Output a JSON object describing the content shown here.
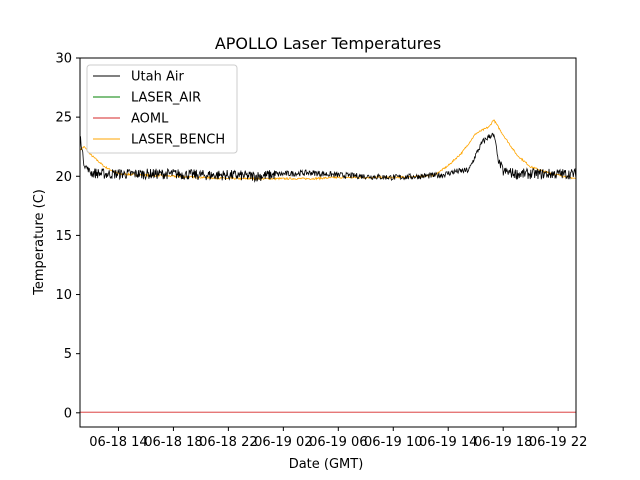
{
  "chart_data": {
    "type": "line",
    "title": "APOLLO Laser Temperatures",
    "xlabel": "Date (GMT)",
    "ylabel": "Temperature (C)",
    "ylim": [
      -1.2,
      30
    ],
    "xlim_hours": [
      11.2,
      47.3
    ],
    "yticks": [
      0,
      5,
      10,
      15,
      20,
      25,
      30
    ],
    "xticks": [
      {
        "hour": 14,
        "label": "06-18 14"
      },
      {
        "hour": 18,
        "label": "06-18 18"
      },
      {
        "hour": 22,
        "label": "06-18 22"
      },
      {
        "hour": 26,
        "label": "06-19 02"
      },
      {
        "hour": 30,
        "label": "06-19 06"
      },
      {
        "hour": 34,
        "label": "06-19 10"
      },
      {
        "hour": 38,
        "label": "06-19 14"
      },
      {
        "hour": 42,
        "label": "06-19 18"
      },
      {
        "hour": 46,
        "label": "06-19 22"
      }
    ],
    "legend_position": "top-left",
    "series": [
      {
        "name": "Utah Air",
        "color": "#000000",
        "noise": 0.25,
        "points": [
          [
            11.2,
            23.5
          ],
          [
            11.5,
            21.0
          ],
          [
            12.0,
            20.3
          ],
          [
            13.0,
            20.2
          ],
          [
            14.0,
            20.2
          ],
          [
            16.0,
            20.2
          ],
          [
            18.0,
            20.2
          ],
          [
            20.0,
            20.1
          ],
          [
            22.0,
            20.1
          ],
          [
            24.0,
            20.0
          ],
          [
            26.0,
            20.2
          ],
          [
            28.0,
            20.3
          ],
          [
            30.0,
            20.1
          ],
          [
            32.0,
            20.0
          ],
          [
            34.0,
            19.9
          ],
          [
            36.0,
            20.0
          ],
          [
            37.5,
            20.1
          ],
          [
            38.5,
            20.4
          ],
          [
            39.5,
            20.5
          ],
          [
            40.0,
            21.8
          ],
          [
            40.5,
            22.9
          ],
          [
            41.0,
            23.4
          ],
          [
            41.2,
            23.5
          ],
          [
            41.4,
            23.2
          ],
          [
            41.6,
            21.5
          ],
          [
            42.0,
            20.4
          ],
          [
            43.0,
            20.2
          ],
          [
            45.0,
            20.2
          ],
          [
            47.3,
            20.2
          ]
        ]
      },
      {
        "name": "LASER_AIR",
        "color": "#008000",
        "noise": 0,
        "points": []
      },
      {
        "name": "AOML",
        "color": "#d62728",
        "noise": 0,
        "points": [
          [
            11.2,
            0.05
          ],
          [
            47.3,
            0.05
          ]
        ]
      },
      {
        "name": "LASER_BENCH",
        "color": "#ffa500",
        "noise": 0.08,
        "points": [
          [
            11.2,
            22.2
          ],
          [
            11.5,
            22.5
          ],
          [
            12.0,
            21.8
          ],
          [
            13.0,
            20.8
          ],
          [
            14.0,
            20.2
          ],
          [
            16.0,
            20.1
          ],
          [
            18.0,
            20.0
          ],
          [
            20.0,
            19.9
          ],
          [
            22.0,
            19.8
          ],
          [
            24.0,
            19.8
          ],
          [
            26.0,
            19.8
          ],
          [
            28.0,
            19.8
          ],
          [
            30.0,
            19.9
          ],
          [
            32.0,
            19.9
          ],
          [
            34.0,
            19.9
          ],
          [
            36.0,
            20.0
          ],
          [
            37.0,
            20.1
          ],
          [
            38.0,
            20.9
          ],
          [
            39.0,
            22.0
          ],
          [
            40.0,
            23.6
          ],
          [
            41.0,
            24.2
          ],
          [
            41.3,
            24.8
          ],
          [
            42.0,
            23.5
          ],
          [
            43.0,
            21.8
          ],
          [
            44.0,
            20.8
          ],
          [
            45.0,
            20.4
          ],
          [
            46.0,
            20.1
          ],
          [
            47.3,
            19.8
          ]
        ]
      }
    ]
  }
}
